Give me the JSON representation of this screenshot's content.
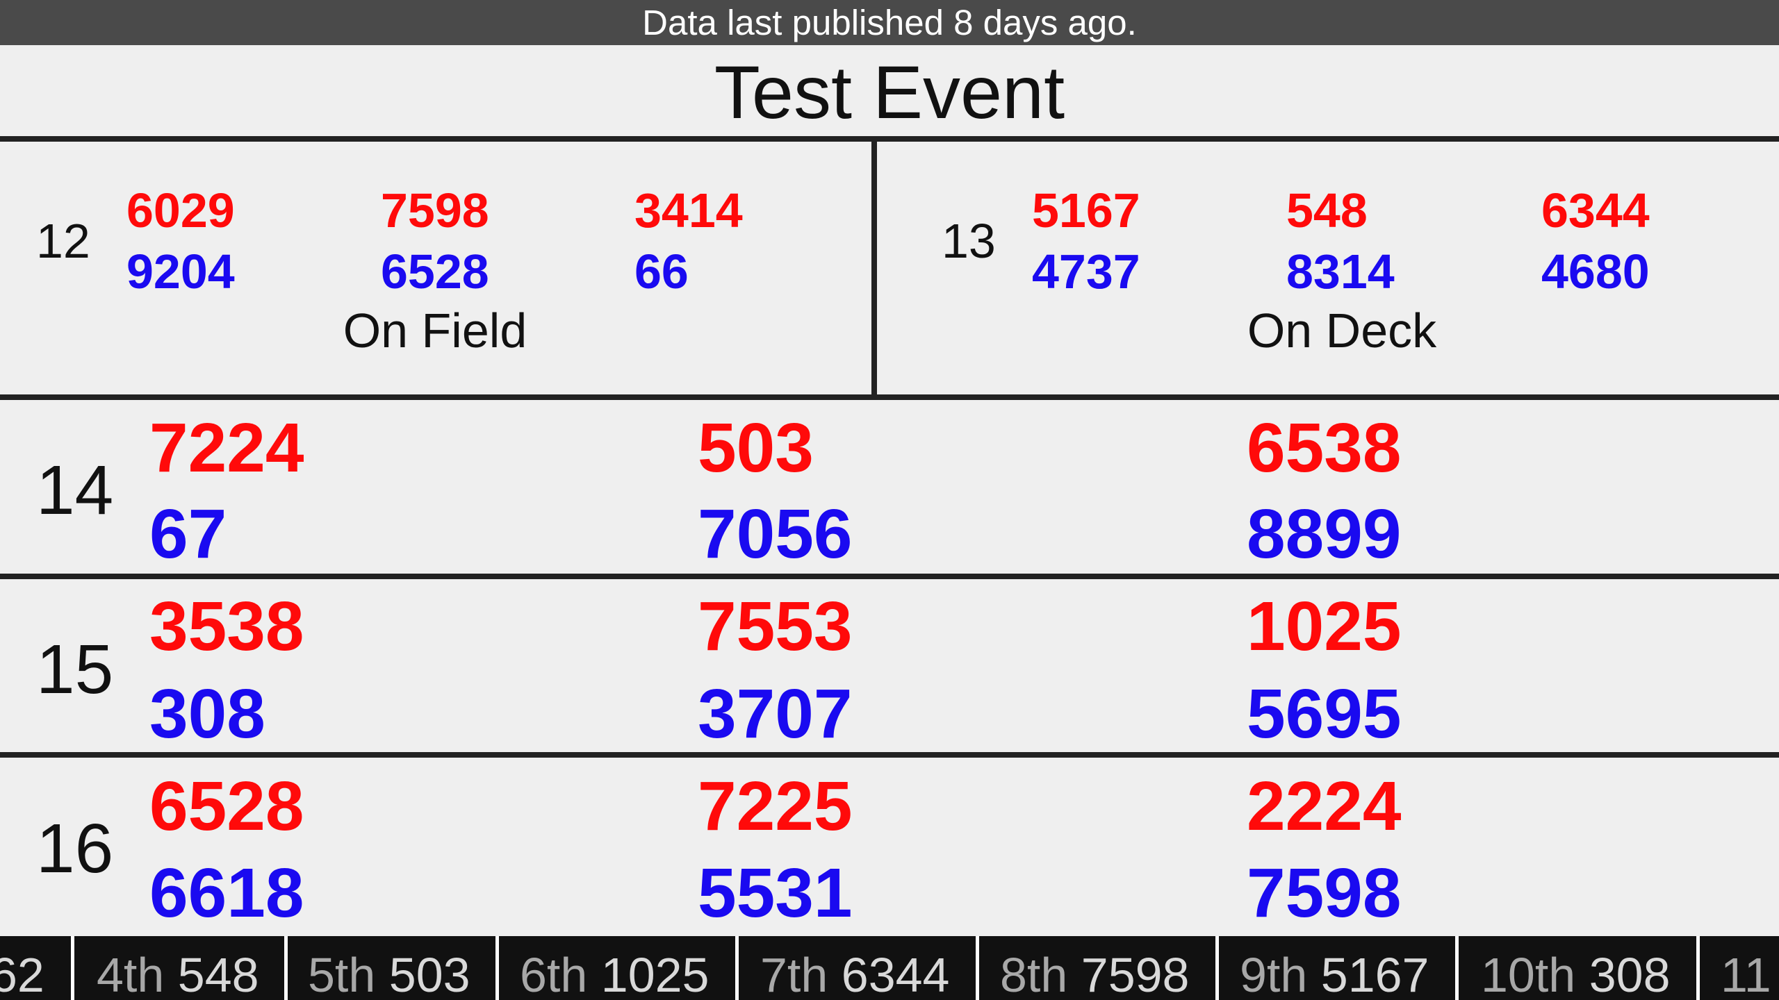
{
  "banner": "Data last published 8 days ago.",
  "event": {
    "title": "Test Event"
  },
  "on_field": {
    "match": "12",
    "label": "On Field",
    "red": [
      "6029",
      "7598",
      "3414"
    ],
    "blue": [
      "9204",
      "6528",
      "66"
    ]
  },
  "on_deck": {
    "match": "13",
    "label": "On Deck",
    "red": [
      "5167",
      "548",
      "6344"
    ],
    "blue": [
      "4737",
      "8314",
      "4680"
    ]
  },
  "upcoming": [
    {
      "match": "14",
      "red": [
        "7224",
        "503",
        "6538"
      ],
      "blue": [
        "67",
        "7056",
        "8899"
      ]
    },
    {
      "match": "15",
      "red": [
        "3538",
        "7553",
        "1025"
      ],
      "blue": [
        "308",
        "3707",
        "5695"
      ]
    },
    {
      "match": "16",
      "red": [
        "6528",
        "7225",
        "2224"
      ],
      "blue": [
        "6618",
        "5531",
        "7598"
      ]
    }
  ],
  "rankings": [
    {
      "rank": "",
      "team": "62"
    },
    {
      "rank": "4th",
      "team": "548"
    },
    {
      "rank": "5th",
      "team": "503"
    },
    {
      "rank": "6th",
      "team": "1025"
    },
    {
      "rank": "7th",
      "team": "6344"
    },
    {
      "rank": "8th",
      "team": "7598"
    },
    {
      "rank": "9th",
      "team": "5167"
    },
    {
      "rank": "10th",
      "team": "308"
    },
    {
      "rank": "11",
      "team": ""
    }
  ],
  "colors": {
    "red_alliance": "#ff0a0a",
    "blue_alliance": "#1a0af0",
    "ticker_bg": "#111111",
    "banner_bg": "#4a4a4a"
  }
}
